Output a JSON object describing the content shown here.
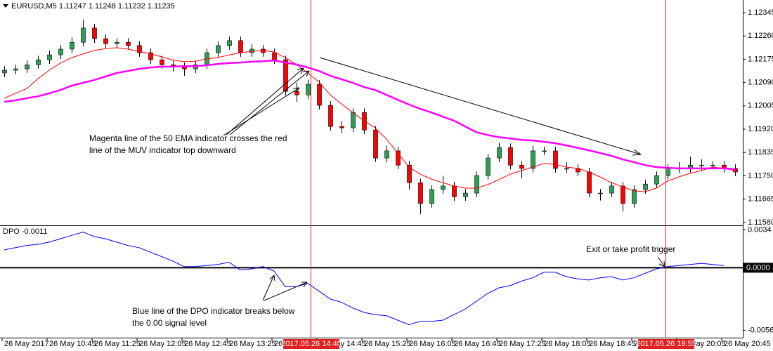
{
  "chart_data": [
    {
      "type": "candlestick",
      "title": "EURUSD,M5  1.11247 1.11248 1.11232 1.11235",
      "categories": [
        "26 May 2017",
        null,
        null,
        null,
        "26 May 10:45",
        null,
        null,
        null,
        "26 May 11:25",
        null,
        null,
        null,
        "26 May 12:05",
        null,
        null,
        null,
        "26 May 12:45",
        null,
        null,
        null,
        "26 May 13:25",
        null,
        null,
        null,
        "26 May 14:05",
        null,
        null,
        null,
        "26 May 14:45",
        null,
        null,
        null,
        "26 May 15:25",
        null,
        null,
        null,
        "26 May 16:05",
        null,
        null,
        null,
        "26 May 16:45",
        null,
        null,
        null,
        "26 May 17:25",
        null,
        null,
        null,
        "26 May 18:05",
        null,
        null,
        null,
        "26 May 18:45",
        null,
        null,
        null,
        "26 May 19:25",
        null,
        null,
        null,
        "26 May 20:05",
        null,
        null,
        null,
        "26 May 20:45",
        null
      ],
      "open": [
        1.12125,
        1.12135,
        1.1214,
        1.12155,
        1.12173,
        1.12191,
        1.12212,
        1.12237,
        1.12289,
        1.1225,
        1.12232,
        1.12237,
        1.12225,
        1.12199,
        1.12173,
        1.12155,
        1.12148,
        1.1214,
        1.12155,
        1.12199,
        1.12225,
        1.12243,
        1.12199,
        1.12212,
        1.12199,
        1.12173,
        1.12058,
        1.12045,
        1.12084,
        1.12007,
        1.1193,
        1.11925,
        1.11981,
        1.11917,
        1.11815,
        1.11841,
        1.11789,
        1.11725,
        1.11649,
        1.117,
        1.11713,
        1.11674,
        1.11687,
        1.11751,
        1.11815,
        1.11853,
        1.11789,
        1.11777,
        1.11841,
        1.11841,
        1.11777,
        1.11777,
        1.11764,
        1.11687,
        1.11687,
        1.11713,
        1.11649,
        1.117,
        1.1172,
        1.11751,
        1.11777,
        1.11777,
        1.11789,
        1.11789,
        1.11789,
        1.11777
      ],
      "high": [
        1.1215,
        1.12155,
        1.1217,
        1.12188,
        1.12206,
        1.12227,
        1.12255,
        1.1232,
        1.12304,
        1.12265,
        1.12252,
        1.12252,
        1.1224,
        1.12214,
        1.12188,
        1.1217,
        1.12163,
        1.1217,
        1.12214,
        1.1224,
        1.12258,
        1.12258,
        1.1223,
        1.12227,
        1.12214,
        1.12188,
        1.1209,
        1.121,
        1.12099,
        1.12022,
        1.1195,
        1.11996,
        1.11996,
        1.11932,
        1.1186,
        1.11856,
        1.11804,
        1.1174,
        1.11715,
        1.1175,
        1.11728,
        1.11702,
        1.11766,
        1.1183,
        1.1187,
        1.11868,
        1.11804,
        1.1186,
        1.11856,
        1.11856,
        1.118,
        1.11792,
        1.11779,
        1.11702,
        1.11728,
        1.11728,
        1.11715,
        1.11735,
        1.11766,
        1.11792,
        1.118,
        1.1182,
        1.1181,
        1.11804,
        1.11804,
        1.11792
      ],
      "low": [
        1.1211,
        1.1212,
        1.12125,
        1.1214,
        1.12158,
        1.12176,
        1.12197,
        1.12222,
        1.12235,
        1.12217,
        1.12217,
        1.1221,
        1.12184,
        1.12158,
        1.1214,
        1.1213,
        1.12115,
        1.12125,
        1.1214,
        1.12184,
        1.1221,
        1.12184,
        1.12184,
        1.12184,
        1.12158,
        1.12043,
        1.1202,
        1.1203,
        1.11992,
        1.11915,
        1.11905,
        1.1191,
        1.11902,
        1.118,
        1.118,
        1.11774,
        1.117,
        1.1161,
        1.11634,
        1.11685,
        1.11659,
        1.11659,
        1.11672,
        1.11736,
        1.118,
        1.11774,
        1.1174,
        1.11762,
        1.11826,
        1.11762,
        1.1176,
        1.11749,
        1.11672,
        1.1166,
        1.11672,
        1.1162,
        1.11634,
        1.11685,
        1.11705,
        1.11736,
        1.1176,
        1.11762,
        1.1177,
        1.11774,
        1.11762,
        1.11749
      ],
      "close": [
        1.12135,
        1.1214,
        1.12155,
        1.12173,
        1.12191,
        1.12212,
        1.12237,
        1.12289,
        1.1225,
        1.12232,
        1.12237,
        1.12225,
        1.12199,
        1.12173,
        1.12155,
        1.12148,
        1.1214,
        1.12155,
        1.12199,
        1.12225,
        1.12243,
        1.12199,
        1.12212,
        1.12199,
        1.12173,
        1.12058,
        1.12045,
        1.12084,
        1.12007,
        1.1193,
        1.11925,
        1.11981,
        1.11917,
        1.11815,
        1.11841,
        1.11789,
        1.11725,
        1.11649,
        1.117,
        1.11713,
        1.11674,
        1.11687,
        1.11751,
        1.11815,
        1.11853,
        1.11789,
        1.11777,
        1.11841,
        1.11841,
        1.11777,
        1.11777,
        1.11764,
        1.11687,
        1.11687,
        1.11713,
        1.11649,
        1.117,
        1.1172,
        1.11751,
        1.11777,
        1.11777,
        1.11789,
        1.11789,
        1.11789,
        1.11777,
        1.11764
      ],
      "up_color": "#2e9e55",
      "down_color": "#ff0000",
      "series": [
        {
          "color": "#ff0000",
          "values": [
            1.12033,
            1.12051,
            1.12068,
            1.12104,
            1.12135,
            1.12161,
            1.12181,
            1.12194,
            1.12207,
            1.12214,
            1.12217,
            1.12212,
            1.12204,
            1.12195,
            1.12184,
            1.12172,
            1.12166,
            1.12168,
            1.12176,
            1.12181,
            1.12191,
            1.12199,
            1.12204,
            1.12207,
            1.12202,
            1.12181,
            1.12156,
            1.12125,
            1.12092,
            1.12045,
            1.12012,
            1.11981,
            1.11951,
            1.11925,
            1.11884,
            1.11833,
            1.11782,
            1.11756,
            1.11738,
            1.11725,
            1.11713,
            1.11705,
            1.11705,
            1.11718,
            1.11736,
            1.11756,
            1.11769,
            1.11782,
            1.11795,
            1.11792,
            1.11782,
            1.11777,
            1.11764,
            1.11746,
            1.11725,
            1.1171,
            1.11695,
            1.11692,
            1.11705,
            1.11731,
            1.11746,
            1.11759,
            1.11769,
            1.11782,
            1.11777,
            1.11769
          ]
        },
        {
          "color": "#ff00ff",
          "values": [
            1.1202,
            1.12025,
            1.12033,
            1.1204,
            1.12051,
            1.12063,
            1.12079,
            1.12089,
            1.12099,
            1.12112,
            1.12125,
            1.12132,
            1.1214,
            1.12145,
            1.12148,
            1.12148,
            1.1215,
            1.1215,
            1.12153,
            1.12158,
            1.12161,
            1.12163,
            1.12166,
            1.12168,
            1.12171,
            1.12163,
            1.12156,
            1.12145,
            1.12132,
            1.12115,
            1.12102,
            1.12089,
            1.12074,
            1.12063,
            1.12045,
            1.12027,
            1.1201,
            1.11994,
            1.11981,
            1.11966,
            1.11951,
            1.1193,
            1.11909,
            1.11899,
            1.11891,
            1.11886,
            1.11881,
            1.11879,
            1.11874,
            1.11869,
            1.11861,
            1.11852,
            1.11843,
            1.11833,
            1.11823,
            1.1181,
            1.118,
            1.11789,
            1.11782,
            1.11779,
            1.11777,
            1.11777,
            1.11777,
            1.11777,
            1.11777,
            1.11774
          ]
        }
      ],
      "ylim": [
        1.11572,
        1.12386
      ],
      "yticks": [
        1.12345,
        {
          "value": 1.1226,
          "label": "1.12260"
        },
        1.12175,
        {
          "value": 1.1209,
          "label": "1.12090"
        },
        1.12005,
        {
          "value": 1.1192,
          "label": "1.11920"
        },
        1.11835,
        {
          "value": 1.1175,
          "label": "1.11750"
        },
        1.11665,
        {
          "value": 1.1158,
          "label": "1.11580"
        }
      ]
    },
    {
      "type": "line",
      "title": "DPO -0.0011",
      "series": [
        {
          "color": "#0000ff",
          "values": [
            0.0016,
            0.0018,
            0.002,
            0.0021,
            0.0023,
            0.0026,
            0.0029,
            0.0032,
            0.0028,
            0.0026,
            0.0023,
            0.002,
            0.0018,
            0.0014,
            0.001,
            0.0006,
            0.0001,
            0.0001,
            0.0002,
            0.0003,
            0.0005,
            -0.0002,
            -0.0001,
            0.0001,
            -0.0003,
            -0.0017,
            -0.0017,
            -0.0014,
            -0.0021,
            -0.0028,
            -0.0031,
            -0.0036,
            -0.004,
            -0.0042,
            -0.0043,
            -0.0047,
            -0.0051,
            -0.0048,
            -0.0048,
            -0.0047,
            -0.0042,
            -0.0037,
            -0.003,
            -0.0023,
            -0.0018,
            -0.0016,
            -0.0012,
            -0.0009,
            -0.0004,
            -0.0004,
            -0.0008,
            -0.001,
            -0.0011,
            -0.0009,
            -0.0008,
            -0.0011,
            -0.0009,
            -0.0005,
            -0.0001,
            0.0001,
            0.0002,
            0.0003,
            0.0004,
            0.0003,
            0.0002,
            null
          ]
        }
      ],
      "ylim": [
        -0.0062,
        0.0038
      ],
      "yticks": [
        0.0034,
        {
          "value": 0,
          "label": "0.0000"
        },
        -0.0056
      ]
    }
  ],
  "markers": [
    {
      "label": "2017.05.26 14:40"
    },
    {
      "label": "2017.05.26 19:55"
    }
  ],
  "annotations": [
    "Magenta line of the 50 EMA indicator crosses the red",
    "line of the MUV indicator top downward",
    "Exit or take profit trigger",
    "Blue line of the DPO indicator breaks below",
    "the 0.00 signal level"
  ]
}
